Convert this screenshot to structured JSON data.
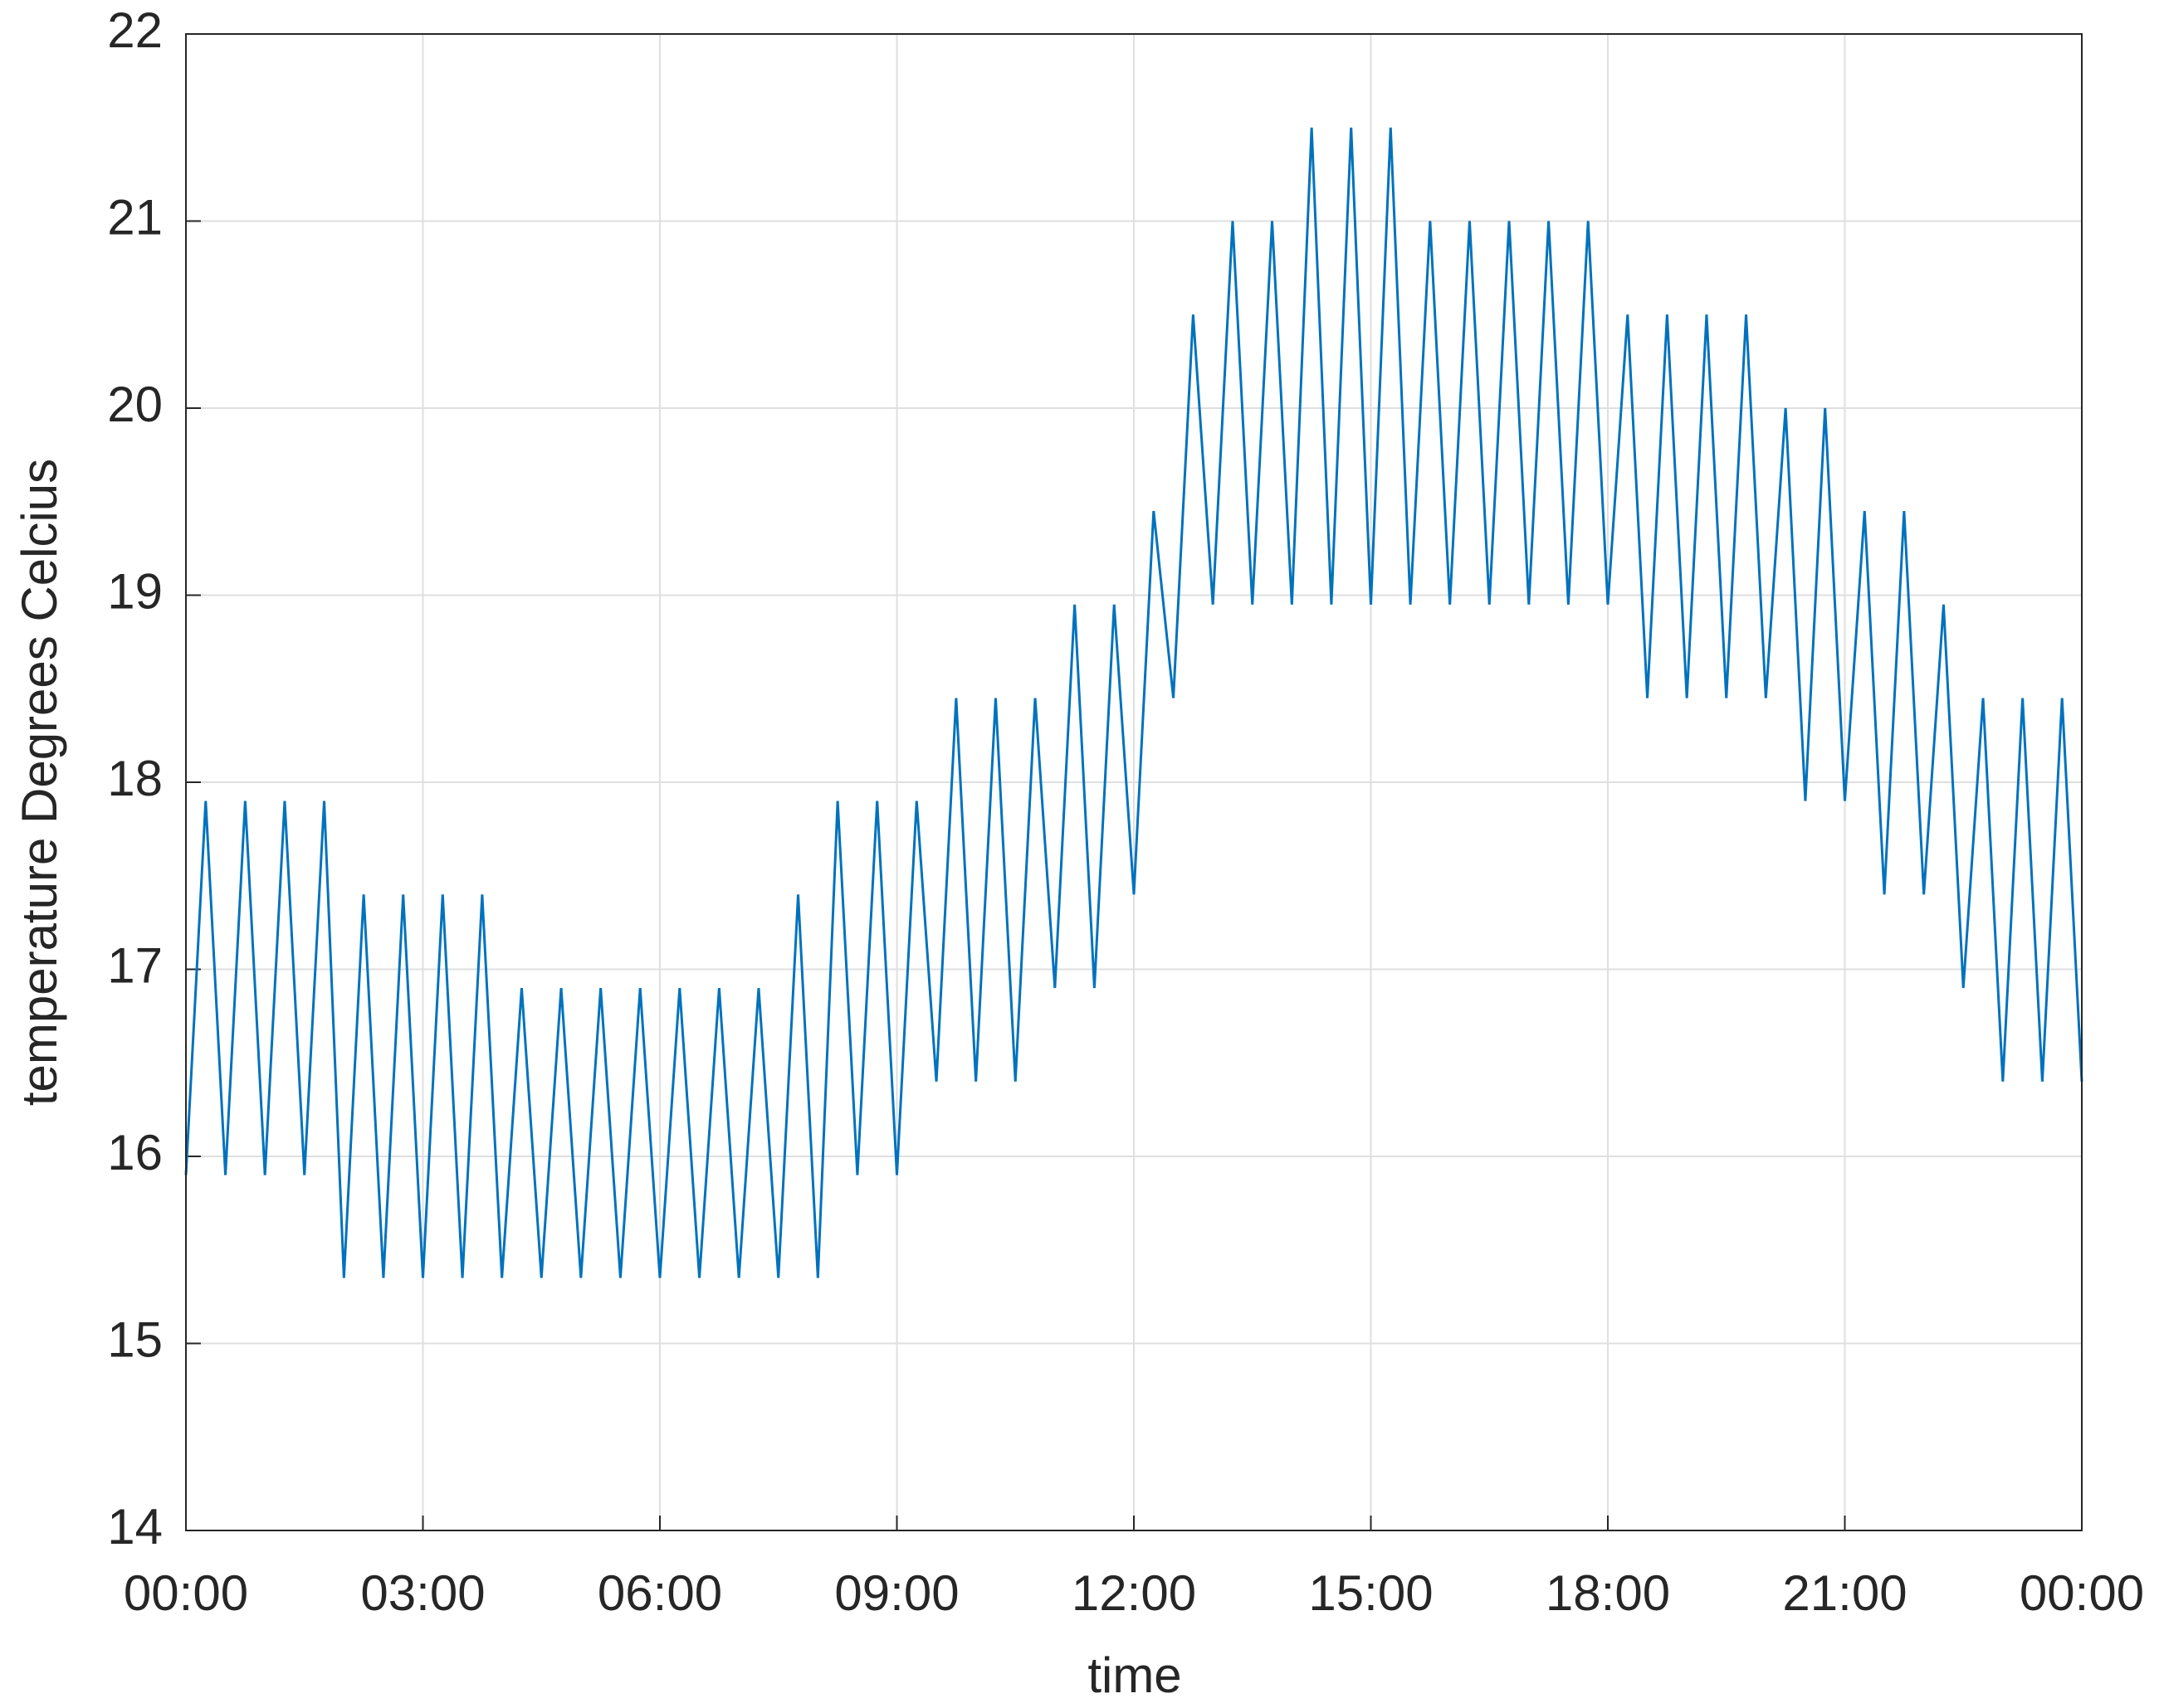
{
  "chart_data": {
    "type": "line",
    "xlabel": "time",
    "ylabel": "temperature Degrees Celcius",
    "x": [
      0,
      0.25,
      0.5,
      0.75,
      1,
      1.25,
      1.5,
      1.75,
      2,
      2.25,
      2.5,
      2.75,
      3,
      3.25,
      3.5,
      3.75,
      4,
      4.25,
      4.5,
      4.75,
      5,
      5.25,
      5.5,
      5.75,
      6,
      6.25,
      6.5,
      6.75,
      7,
      7.25,
      7.5,
      7.75,
      8,
      8.25,
      8.5,
      8.75,
      9,
      9.25,
      9.5,
      9.75,
      10,
      10.25,
      10.5,
      10.75,
      11,
      11.25,
      11.5,
      11.75,
      12,
      12.25,
      12.5,
      12.75,
      13,
      13.25,
      13.5,
      13.75,
      14,
      14.25,
      14.5,
      14.75,
      15,
      15.25,
      15.5,
      15.75,
      16,
      16.25,
      16.5,
      16.75,
      17,
      17.25,
      17.5,
      17.75,
      18,
      18.25,
      18.5,
      18.75,
      19,
      19.25,
      19.5,
      19.75,
      20,
      20.25,
      20.5,
      20.75,
      21,
      21.25,
      21.5,
      21.75,
      22,
      22.25,
      22.5,
      22.75,
      23,
      23.25,
      23.5,
      23.75,
      24
    ],
    "values": [
      15.9,
      17.9,
      15.9,
      17.9,
      15.9,
      17.9,
      15.9,
      17.9,
      15.35,
      17.4,
      15.35,
      17.4,
      15.35,
      17.4,
      15.35,
      17.4,
      15.35,
      16.9,
      15.35,
      16.9,
      15.35,
      16.9,
      15.35,
      16.9,
      15.35,
      16.9,
      15.35,
      16.9,
      15.35,
      16.9,
      15.35,
      17.4,
      15.35,
      17.9,
      15.9,
      17.9,
      15.9,
      17.9,
      16.4,
      18.45,
      16.4,
      18.45,
      16.4,
      18.45,
      16.9,
      18.95,
      16.9,
      18.95,
      17.4,
      19.45,
      18.45,
      20.5,
      18.95,
      21,
      18.95,
      21,
      18.95,
      21.5,
      18.95,
      21.5,
      18.95,
      21.5,
      18.95,
      21,
      18.95,
      21,
      18.95,
      21,
      18.95,
      21,
      18.95,
      21,
      18.95,
      20.5,
      18.45,
      20.5,
      18.45,
      20.5,
      18.45,
      20.5,
      18.45,
      20,
      17.9,
      20,
      17.9,
      19.45,
      17.4,
      19.45,
      17.4,
      18.95,
      16.9,
      18.45,
      16.4,
      18.45,
      16.4,
      18.45,
      16.4
    ],
    "color": "#0072bd",
    "xlim": [
      0,
      24
    ],
    "xticks": [
      {
        "value": 0,
        "label": "00:00"
      },
      {
        "value": 3,
        "label": "03:00"
      },
      {
        "value": 6,
        "label": "06:00"
      },
      {
        "value": 9,
        "label": "09:00"
      },
      {
        "value": 12,
        "label": "12:00"
      },
      {
        "value": 15,
        "label": "15:00"
      },
      {
        "value": 18,
        "label": "18:00"
      },
      {
        "value": 21,
        "label": "21:00"
      },
      {
        "value": 24,
        "label": "00:00"
      }
    ],
    "ylim": [
      14,
      22
    ],
    "yticks": [
      14,
      15,
      16,
      17,
      18,
      19,
      20,
      21,
      22
    ],
    "grid": true
  }
}
